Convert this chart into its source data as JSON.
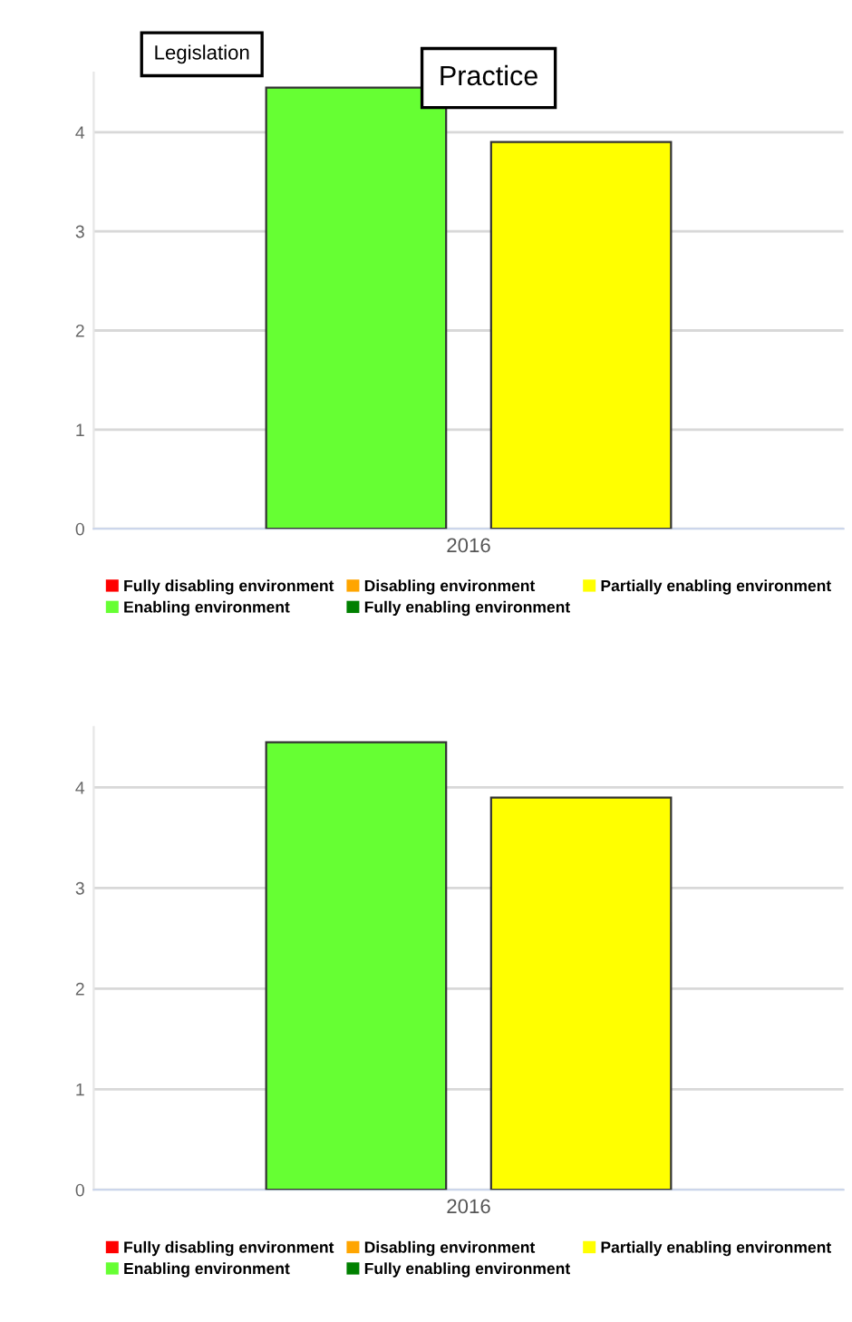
{
  "chart_data": [
    {
      "type": "bar",
      "categories": [
        "2016"
      ],
      "annotations": [
        "Legislation",
        "Practice"
      ],
      "ylim": [
        0,
        4.6
      ],
      "yticks": [
        0,
        1,
        2,
        3,
        4
      ],
      "grid": "y",
      "legend": "bottom",
      "series": [
        {
          "name": "Fully disabling environment",
          "color": "#ff0000",
          "values": [
            null
          ]
        },
        {
          "name": "Disabling environment",
          "color": "#ffa500",
          "values": [
            null
          ]
        },
        {
          "name": "Partially enabling environment",
          "color": "#ffff00",
          "values": [
            3.9
          ]
        },
        {
          "name": "Enabling environment",
          "color": "#66ff33",
          "values": [
            4.45
          ]
        },
        {
          "name": "Fully enabling environment",
          "color": "#008000",
          "values": [
            null
          ]
        }
      ]
    },
    {
      "type": "bar",
      "categories": [
        "2016"
      ],
      "ylim": [
        0,
        4.6
      ],
      "yticks": [
        0,
        1,
        2,
        3,
        4
      ],
      "grid": "y",
      "legend": "bottom",
      "series": [
        {
          "name": "Fully disabling environment",
          "color": "#ff0000",
          "values": [
            null
          ]
        },
        {
          "name": "Disabling environment",
          "color": "#ffa500",
          "values": [
            null
          ]
        },
        {
          "name": "Partially enabling environment",
          "color": "#ffff00",
          "values": [
            3.9
          ]
        },
        {
          "name": "Enabling environment",
          "color": "#66ff33",
          "values": [
            4.45
          ]
        },
        {
          "name": "Fully enabling environment",
          "color": "#008000",
          "values": [
            null
          ]
        }
      ]
    }
  ]
}
